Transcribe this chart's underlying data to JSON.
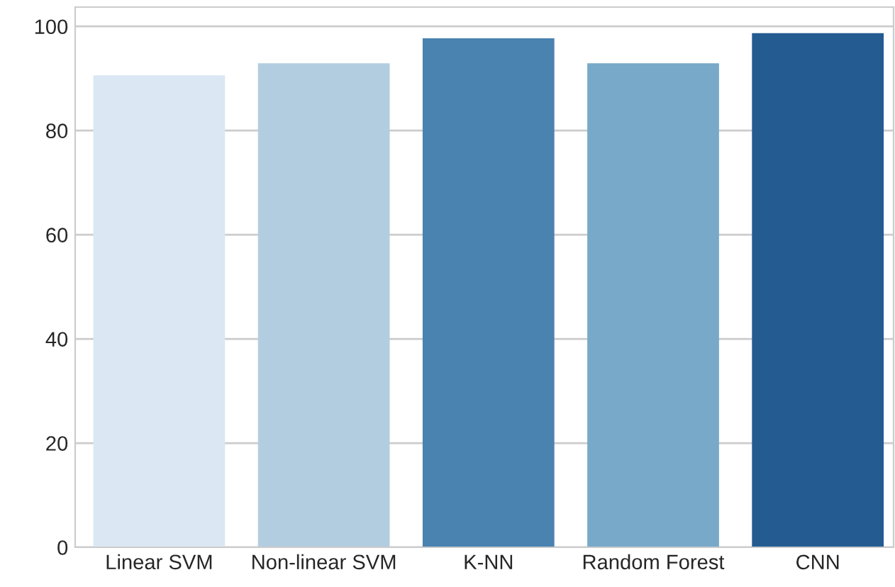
{
  "chart_data": {
    "type": "bar",
    "categories": [
      "Linear SVM",
      "Non-linear SVM",
      "K-NN",
      "Random Forest",
      "CNN"
    ],
    "values": [
      90.6,
      92.9,
      97.7,
      92.9,
      98.7
    ],
    "colors": [
      "#dbe7f3",
      "#b3cde0",
      "#4a82b0",
      "#78a9c9",
      "#245b91"
    ],
    "ylim": [
      0,
      103.7
    ],
    "yticks": [
      0,
      20,
      40,
      60,
      80,
      100
    ],
    "grid": "y"
  }
}
